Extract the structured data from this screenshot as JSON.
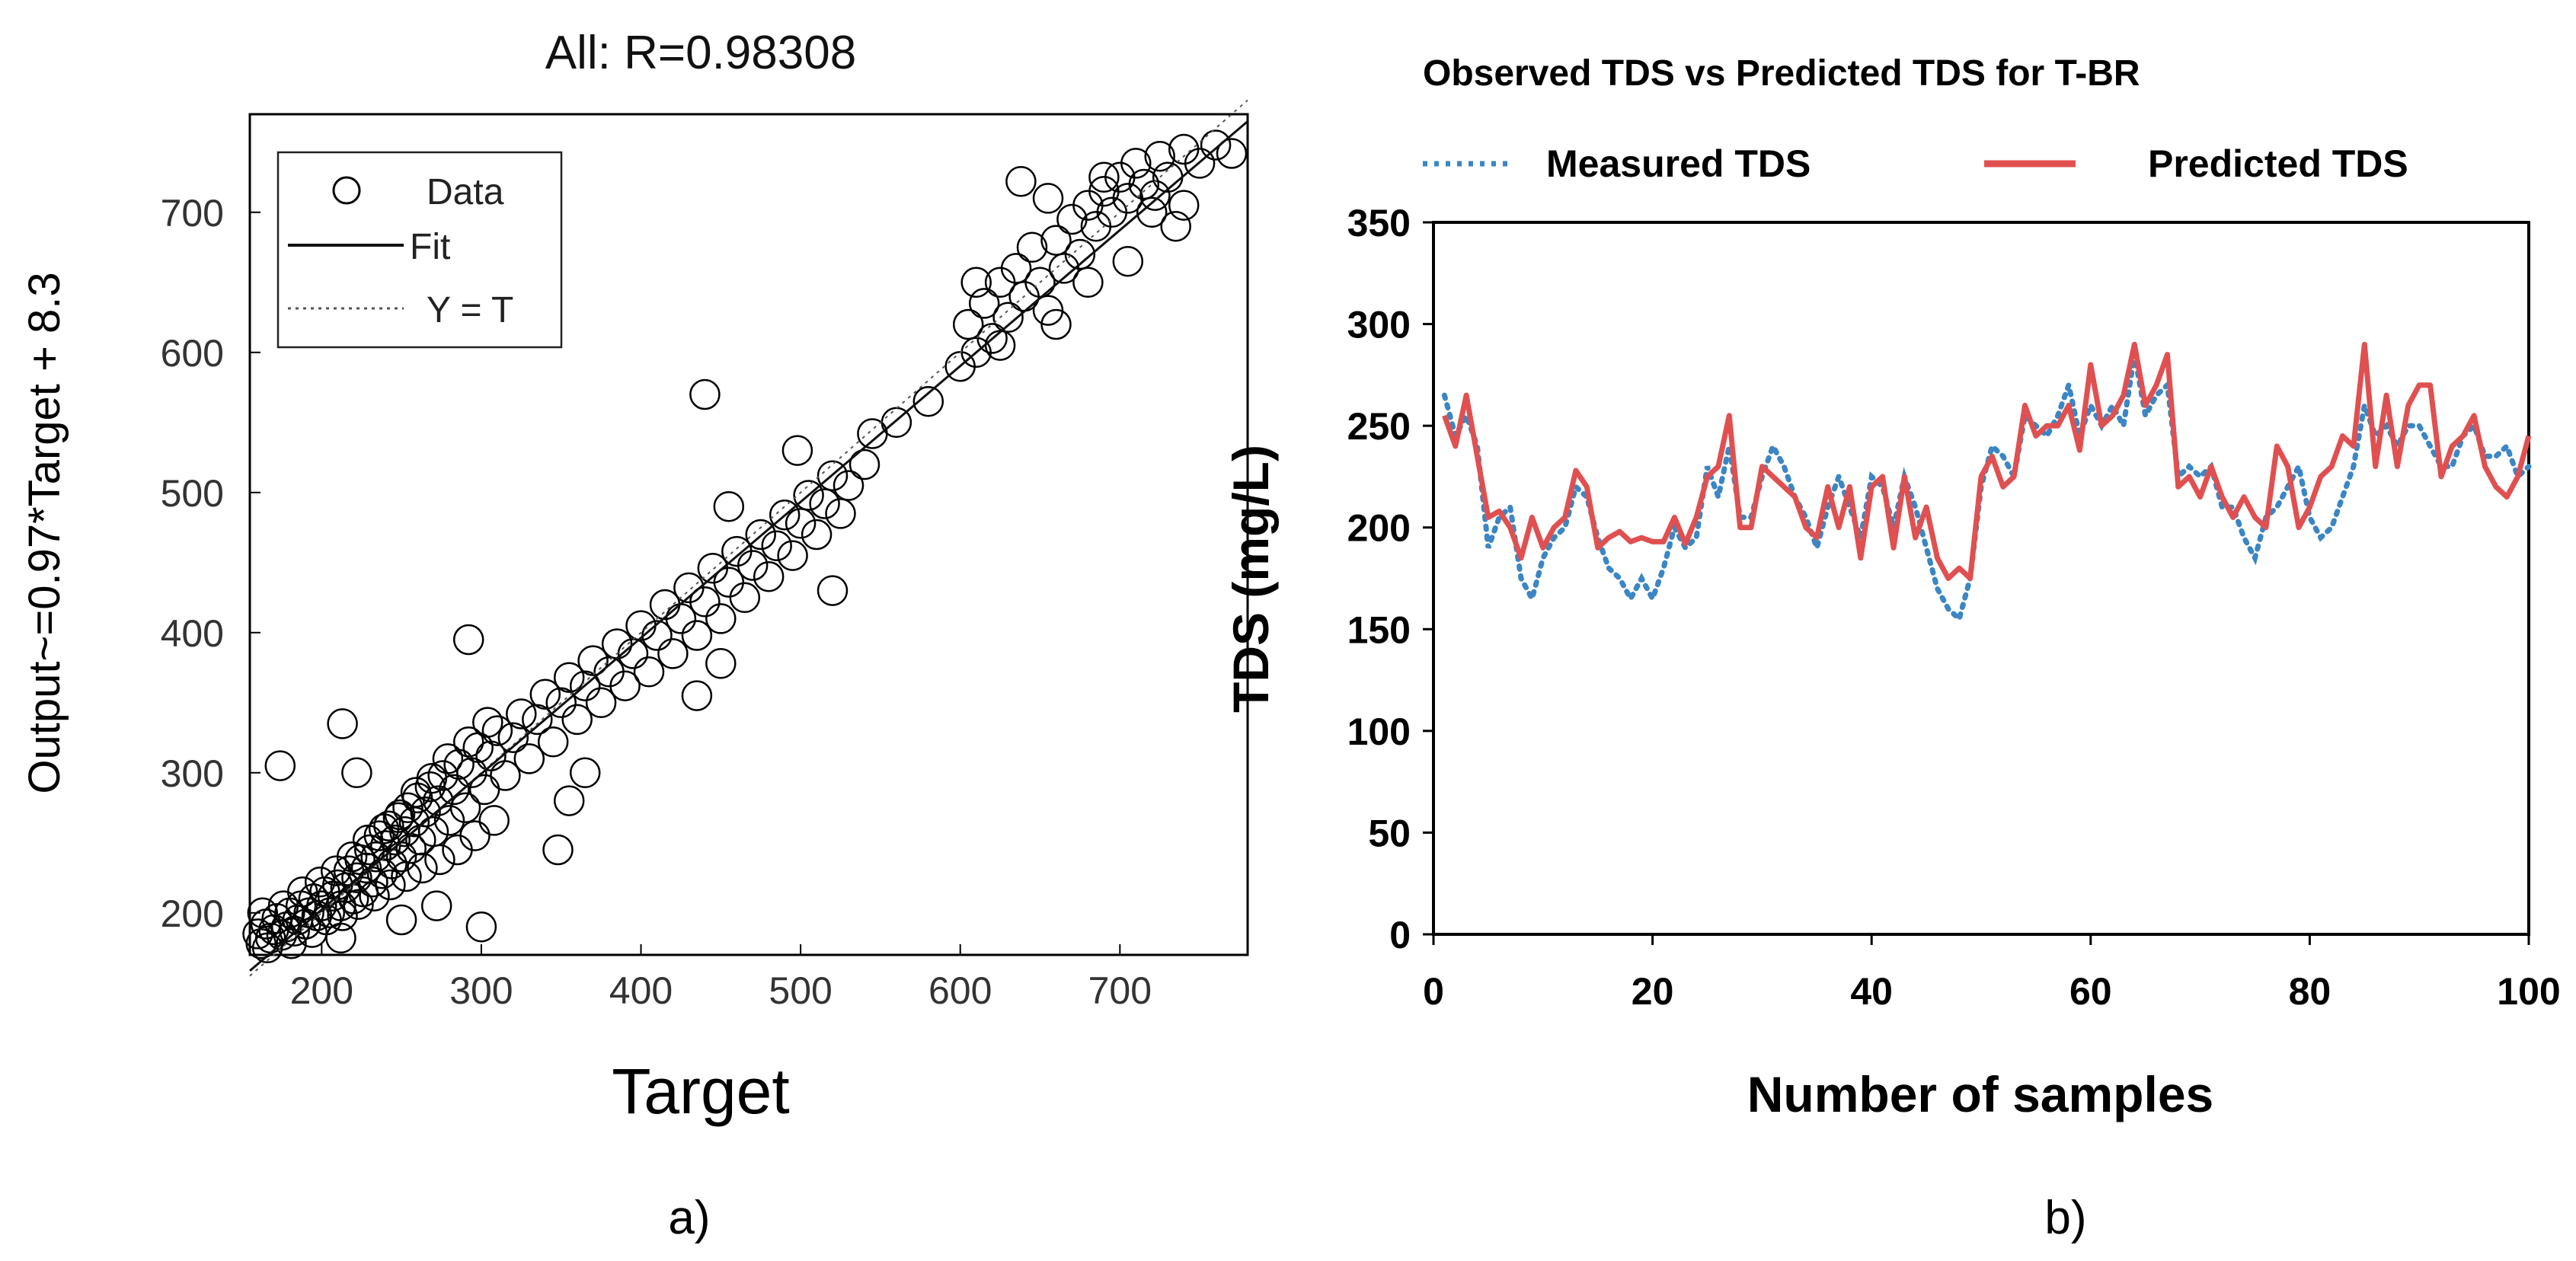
{
  "chart_data": [
    {
      "type": "scatter",
      "panel_label": "a)",
      "title": "All: R=0.98308",
      "xlabel": "Target",
      "ylabel": "Output~=0.97*Target + 8.3",
      "xlim": [
        155,
        780
      ],
      "ylim": [
        170,
        770
      ],
      "xticks": [
        "200",
        "300",
        "400",
        "500",
        "600",
        "700"
      ],
      "yticks": [
        "200",
        "300",
        "400",
        "500",
        "600",
        "700"
      ],
      "legend": {
        "position": "top-left",
        "entries": [
          "Data",
          "Fit",
          "Y = T"
        ]
      },
      "fit": {
        "slope": 0.97,
        "intercept": 8.3
      },
      "points": [
        [
          160,
          185
        ],
        [
          162,
          178
        ],
        [
          165,
          192
        ],
        [
          168,
          182
        ],
        [
          170,
          188
        ],
        [
          172,
          196
        ],
        [
          175,
          184
        ],
        [
          178,
          190
        ],
        [
          180,
          200
        ],
        [
          183,
          187
        ],
        [
          185,
          195
        ],
        [
          187,
          205
        ],
        [
          190,
          192
        ],
        [
          192,
          200
        ],
        [
          195,
          210
        ],
        [
          197,
          198
        ],
        [
          200,
          205
        ],
        [
          202,
          215
        ],
        [
          205,
          200
        ],
        [
          207,
          212
        ],
        [
          210,
          220
        ],
        [
          212,
          205
        ],
        [
          215,
          218
        ],
        [
          217,
          230
        ],
        [
          220,
          210
        ],
        [
          222,
          225
        ],
        [
          224,
          238
        ],
        [
          226,
          215
        ],
        [
          228,
          232
        ],
        [
          230,
          245
        ],
        [
          232,
          222
        ],
        [
          234,
          240
        ],
        [
          236,
          255
        ],
        [
          238,
          228
        ],
        [
          240,
          248
        ],
        [
          242,
          262
        ],
        [
          244,
          235
        ],
        [
          246,
          252
        ],
        [
          248,
          268
        ],
        [
          250,
          240
        ],
        [
          252,
          258
        ],
        [
          254,
          275
        ],
        [
          256,
          246
        ],
        [
          258,
          265
        ],
        [
          260,
          282
        ],
        [
          262,
          252
        ],
        [
          265,
          272
        ],
        [
          268,
          290
        ],
        [
          270,
          258
        ],
        [
          273,
          280
        ],
        [
          276,
          298
        ],
        [
          280,
          266
        ],
        [
          283,
          288
        ],
        [
          286,
          306
        ],
        [
          290,
          275
        ],
        [
          294,
          300
        ],
        [
          298,
          318
        ],
        [
          302,
          288
        ],
        [
          306,
          312
        ],
        [
          310,
          330
        ],
        [
          315,
          298
        ],
        [
          320,
          325
        ],
        [
          325,
          342
        ],
        [
          330,
          310
        ],
        [
          335,
          338
        ],
        [
          340,
          356
        ],
        [
          345,
          322
        ],
        [
          350,
          350
        ],
        [
          355,
          368
        ],
        [
          360,
          338
        ],
        [
          365,
          362
        ],
        [
          370,
          380
        ],
        [
          375,
          350
        ],
        [
          380,
          372
        ],
        [
          385,
          392
        ],
        [
          390,
          362
        ],
        [
          395,
          385
        ],
        [
          400,
          405
        ],
        [
          405,
          372
        ],
        [
          410,
          398
        ],
        [
          415,
          420
        ],
        [
          420,
          385
        ],
        [
          425,
          410
        ],
        [
          430,
          432
        ],
        [
          435,
          398
        ],
        [
          440,
          422
        ],
        [
          445,
          446
        ],
        [
          450,
          410
        ],
        [
          455,
          436
        ],
        [
          460,
          458
        ],
        [
          465,
          425
        ],
        [
          470,
          448
        ],
        [
          475,
          470
        ],
        [
          480,
          440
        ],
        [
          485,
          462
        ],
        [
          490,
          484
        ],
        [
          495,
          455
        ],
        [
          500,
          478
        ],
        [
          505,
          498
        ],
        [
          510,
          470
        ],
        [
          515,
          492
        ],
        [
          520,
          512
        ],
        [
          525,
          485
        ],
        [
          530,
          505
        ],
        [
          540,
          520
        ],
        [
          560,
          550
        ],
        [
          580,
          565
        ],
        [
          600,
          590
        ],
        [
          605,
          620
        ],
        [
          610,
          600
        ],
        [
          615,
          635
        ],
        [
          620,
          610
        ],
        [
          625,
          650
        ],
        [
          630,
          625
        ],
        [
          635,
          660
        ],
        [
          640,
          640
        ],
        [
          645,
          675
        ],
        [
          650,
          650
        ],
        [
          655,
          630
        ],
        [
          660,
          680
        ],
        [
          665,
          660
        ],
        [
          670,
          695
        ],
        [
          675,
          670
        ],
        [
          680,
          705
        ],
        [
          685,
          690
        ],
        [
          690,
          715
        ],
        [
          695,
          700
        ],
        [
          700,
          725
        ],
        [
          705,
          710
        ],
        [
          710,
          735
        ],
        [
          715,
          720
        ],
        [
          720,
          700
        ],
        [
          725,
          740
        ],
        [
          730,
          725
        ],
        [
          735,
          690
        ],
        [
          740,
          745
        ],
        [
          750,
          735
        ],
        [
          760,
          748
        ],
        [
          770,
          742
        ],
        [
          163,
          200
        ],
        [
          166,
          175
        ],
        [
          176,
          205
        ],
        [
          181,
          178
        ],
        [
          188,
          215
        ],
        [
          194,
          186
        ],
        [
          199,
          222
        ],
        [
          203,
          195
        ],
        [
          209,
          230
        ],
        [
          213,
          198
        ],
        [
          219,
          240
        ],
        [
          223,
          206
        ],
        [
          229,
          252
        ],
        [
          233,
          212
        ],
        [
          239,
          260
        ],
        [
          243,
          220
        ],
        [
          249,
          270
        ],
        [
          253,
          226
        ],
        [
          259,
          286
        ],
        [
          263,
          232
        ],
        [
          269,
          296
        ],
        [
          274,
          238
        ],
        [
          279,
          310
        ],
        [
          285,
          245
        ],
        [
          292,
          322
        ],
        [
          296,
          255
        ],
        [
          304,
          336
        ],
        [
          308,
          266
        ],
        [
          174,
          305
        ],
        [
          213,
          335
        ],
        [
          222,
          300
        ],
        [
          292,
          395
        ],
        [
          300,
          190
        ],
        [
          212,
          182
        ],
        [
          272,
          205
        ],
        [
          250,
          195
        ],
        [
          348,
          245
        ],
        [
          355,
          280
        ],
        [
          365,
          300
        ],
        [
          440,
          570
        ],
        [
          435,
          355
        ],
        [
          450,
          378
        ],
        [
          455,
          490
        ],
        [
          498,
          530
        ],
        [
          520,
          430
        ],
        [
          545,
          542
        ],
        [
          705,
          665
        ],
        [
          610,
          650
        ],
        [
          660,
          620
        ],
        [
          638,
          722
        ],
        [
          655,
          710
        ],
        [
          690,
          725
        ],
        [
          722,
          712
        ],
        [
          740,
          705
        ],
        [
          680,
          650
        ],
        [
          625,
          605
        ]
      ]
    },
    {
      "type": "line",
      "panel_label": "b)",
      "title": "Observed TDS vs Predicted TDS for T-BR",
      "xlabel": "Number of samples",
      "ylabel": "TDS (mg/L)",
      "xlim": [
        0,
        100
      ],
      "ylim": [
        0,
        350
      ],
      "xticks": [
        "0",
        "20",
        "40",
        "60",
        "80",
        "100"
      ],
      "yticks": [
        "0",
        "50",
        "100",
        "150",
        "200",
        "250",
        "300",
        "350"
      ],
      "legend": {
        "position": "top",
        "entries": [
          "Measured TDS",
          "Predicted TDS"
        ]
      },
      "colors": {
        "measured": "#3b86c4",
        "predicted": "#e05050"
      },
      "x": [
        1,
        2,
        3,
        4,
        5,
        6,
        7,
        8,
        9,
        10,
        11,
        12,
        13,
        14,
        15,
        16,
        17,
        18,
        19,
        20,
        21,
        22,
        23,
        24,
        25,
        26,
        27,
        28,
        29,
        30,
        31,
        32,
        33,
        34,
        35,
        36,
        37,
        38,
        39,
        40,
        41,
        42,
        43,
        44,
        45,
        46,
        47,
        48,
        49,
        50,
        51,
        52,
        53,
        54,
        55,
        56,
        57,
        58,
        59,
        60,
        61,
        62,
        63,
        64,
        65,
        66,
        67,
        68,
        69,
        70,
        71,
        72,
        73,
        74,
        75,
        76,
        77,
        78,
        79,
        80,
        81,
        82,
        83,
        84,
        85,
        86,
        87,
        88,
        89,
        90,
        91,
        92,
        93,
        94,
        95,
        96,
        97,
        98,
        99,
        100
      ],
      "series": [
        {
          "name": "Measured TDS",
          "values": [
            265,
            245,
            255,
            240,
            190,
            205,
            210,
            175,
            165,
            185,
            195,
            200,
            220,
            215,
            195,
            180,
            175,
            165,
            175,
            165,
            180,
            200,
            190,
            195,
            230,
            215,
            240,
            205,
            205,
            225,
            240,
            230,
            215,
            205,
            190,
            210,
            225,
            210,
            195,
            225,
            220,
            200,
            225,
            210,
            190,
            170,
            160,
            155,
            175,
            220,
            240,
            235,
            225,
            255,
            250,
            245,
            255,
            270,
            245,
            260,
            250,
            260,
            250,
            285,
            255,
            265,
            270,
            225,
            230,
            225,
            230,
            210,
            210,
            195,
            185,
            205,
            210,
            220,
            230,
            205,
            195,
            200,
            215,
            230,
            260,
            245,
            250,
            240,
            250,
            250,
            240,
            230,
            230,
            245,
            250,
            235,
            235,
            240,
            225,
            230
          ]
        },
        {
          "name": "Predicted TDS",
          "values": [
            255,
            240,
            265,
            235,
            205,
            208,
            200,
            185,
            205,
            190,
            200,
            205,
            228,
            220,
            190,
            195,
            198,
            193,
            195,
            193,
            193,
            205,
            192,
            205,
            225,
            230,
            255,
            200,
            200,
            230,
            225,
            220,
            215,
            200,
            195,
            220,
            200,
            220,
            185,
            220,
            225,
            190,
            225,
            195,
            210,
            185,
            175,
            180,
            175,
            225,
            235,
            220,
            225,
            260,
            245,
            250,
            250,
            260,
            238,
            280,
            250,
            255,
            265,
            290,
            260,
            270,
            285,
            220,
            225,
            215,
            230,
            215,
            205,
            215,
            205,
            200,
            240,
            230,
            200,
            210,
            225,
            230,
            245,
            240,
            290,
            230,
            265,
            230,
            260,
            270,
            270,
            225,
            240,
            245,
            255,
            230,
            220,
            215,
            225,
            245
          ]
        }
      ]
    }
  ]
}
